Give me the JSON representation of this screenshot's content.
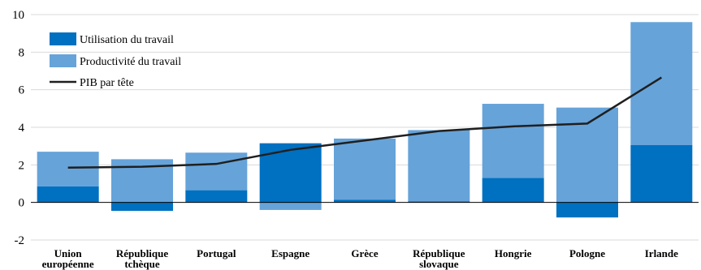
{
  "chart_data": {
    "type": "bar",
    "stacked": true,
    "title": "",
    "xlabel": "",
    "ylabel": "",
    "ylim": [
      -2,
      10
    ],
    "yticks": [
      -2,
      0,
      2,
      4,
      6,
      8,
      10
    ],
    "grid": true,
    "legend_position": "top-left",
    "categories": [
      [
        "Union",
        "européenne"
      ],
      [
        "République",
        "tchèque"
      ],
      [
        "Portugal"
      ],
      [
        "Espagne"
      ],
      [
        "Grèce"
      ],
      [
        "République",
        "slovaque"
      ],
      [
        "Hongrie"
      ],
      [
        "Pologne"
      ],
      [
        "Irlande"
      ]
    ],
    "series": [
      {
        "name": "Utilisation du travail",
        "kind": "bar",
        "color": "#0070c0",
        "values": [
          0.85,
          -0.45,
          0.65,
          3.15,
          0.15,
          0.05,
          1.3,
          -0.8,
          3.05
        ]
      },
      {
        "name": "Productivité du travail",
        "kind": "bar",
        "color": "#66a3d9",
        "values": [
          1.85,
          2.3,
          2.0,
          -0.4,
          3.25,
          3.8,
          3.95,
          5.05,
          6.55
        ]
      },
      {
        "name": "PIB par tête",
        "kind": "line",
        "color": "#1f1f1f",
        "values": [
          1.85,
          1.9,
          2.05,
          2.8,
          3.3,
          3.8,
          4.05,
          4.2,
          6.65
        ]
      }
    ]
  }
}
